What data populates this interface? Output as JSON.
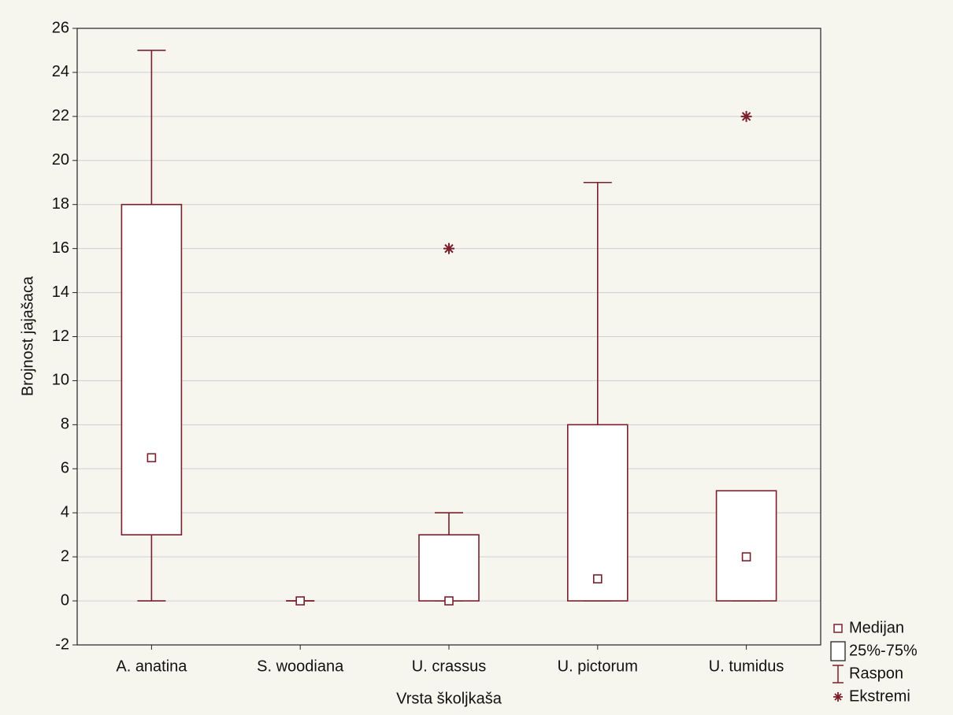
{
  "chart_data": {
    "type": "box",
    "xlabel": "Vrsta školjkaša",
    "ylabel": "Brojnost jajašaca",
    "categories": [
      "A. anatina",
      "S. woodiana",
      "U. crassus",
      "U. pictorum",
      "U. tumidus"
    ],
    "median": [
      6.5,
      0,
      0,
      1,
      2
    ],
    "q1": [
      3,
      0,
      0,
      0,
      0
    ],
    "q3": [
      18,
      0,
      3,
      8,
      5
    ],
    "min": [
      0,
      0,
      0,
      0,
      0
    ],
    "max": [
      25,
      0,
      4,
      19,
      5
    ],
    "extremes": [
      null,
      null,
      16,
      null,
      22
    ],
    "color": "#7a1f2b",
    "ylim": [
      -2,
      26
    ],
    "yticks": [
      -2,
      0,
      2,
      4,
      6,
      8,
      10,
      12,
      14,
      16,
      18,
      20,
      22,
      24,
      26
    ],
    "grid": true,
    "legend": [
      "Medijan",
      "25%-75%",
      "Raspon",
      "Ekstremi"
    ],
    "legend_position": "bottom-right"
  }
}
